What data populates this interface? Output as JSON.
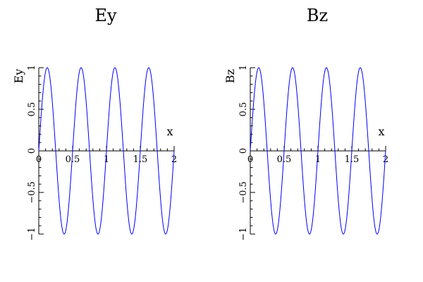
{
  "chart_data": [
    {
      "type": "line",
      "title": "Ey",
      "xlabel": "x",
      "ylabel": "Ey",
      "xlim": [
        0,
        2
      ],
      "ylim": [
        -1,
        1
      ],
      "xticks": [
        "0",
        "0.5",
        "1",
        "1.5",
        "2"
      ],
      "yticks": [
        "-1",
        "-0.5",
        "0",
        "0.5",
        "1"
      ],
      "function": "sin",
      "amplitude": 1,
      "wavelength": 0.5,
      "series": [
        {
          "color": "#0000ff"
        }
      ]
    },
    {
      "type": "line",
      "title": "Bz",
      "xlabel": "x",
      "ylabel": "Bz",
      "xlim": [
        0,
        2
      ],
      "ylim": [
        -1,
        1
      ],
      "xticks": [
        "0",
        "0.5",
        "1",
        "1.5",
        "2"
      ],
      "yticks": [
        "-1",
        "-0.5",
        "0",
        "0.5",
        "1"
      ],
      "function": "sin",
      "amplitude": 1,
      "wavelength": 0.5,
      "series": [
        {
          "color": "#0000ff"
        }
      ]
    }
  ]
}
